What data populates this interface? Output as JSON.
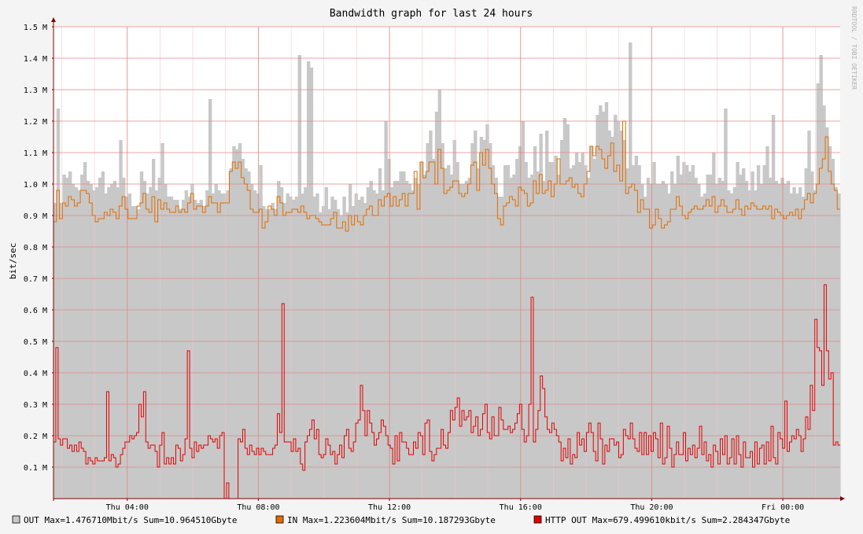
{
  "chart_data": {
    "type": "area",
    "title": "Bandwidth graph for last 24 hours",
    "ylabel": "bit/sec",
    "watermark": "RRDTOOL / TOBI OETIKER",
    "ylim": [
      0,
      1.5
    ],
    "y_unit": "M bit/sec",
    "yticks": [
      {
        "value": 0.1,
        "label": "0.1 M"
      },
      {
        "value": 0.2,
        "label": "0.2 M"
      },
      {
        "value": 0.3,
        "label": "0.3 M"
      },
      {
        "value": 0.4,
        "label": "0.4 M"
      },
      {
        "value": 0.5,
        "label": "0.5 M"
      },
      {
        "value": 0.6,
        "label": "0.6 M"
      },
      {
        "value": 0.7,
        "label": "0.7 M"
      },
      {
        "value": 0.8,
        "label": "0.8 M"
      },
      {
        "value": 0.9,
        "label": "0.9 M"
      },
      {
        "value": 1.0,
        "label": "1.0 M"
      },
      {
        "value": 1.1,
        "label": "1.1 M"
      },
      {
        "value": 1.2,
        "label": "1.2 M"
      },
      {
        "value": 1.3,
        "label": "1.3 M"
      },
      {
        "value": 1.4,
        "label": "1.4 M"
      },
      {
        "value": 1.5,
        "label": "1.5 M"
      }
    ],
    "x_hours_range": [
      0,
      24
    ],
    "xticks": [
      {
        "hour": 2.25,
        "label": "Thu 04:00"
      },
      {
        "hour": 6.25,
        "label": "Thu 08:00"
      },
      {
        "hour": 10.25,
        "label": "Thu 12:00"
      },
      {
        "hour": 14.25,
        "label": "Thu 16:00"
      },
      {
        "hour": 18.25,
        "label": "Thu 20:00"
      },
      {
        "hour": 22.25,
        "label": "Fri 00:00"
      }
    ],
    "grid": true,
    "colors": {
      "background": "#f4f4f4",
      "canvas": "#ffffff",
      "grid": "#eec8c8",
      "major_grid": "#e08888",
      "out": "#c8c8c8",
      "in": "#e06c00",
      "http_out": "#e00000",
      "axis": "#800000",
      "text": "#000000",
      "watermark": "#b0b0b0"
    },
    "series": [
      {
        "name": "OUT",
        "type": "area",
        "values": [
          0.94,
          1.24,
          0.94,
          1.03,
          1.02,
          1.04,
          1.0,
          0.99,
          0.98,
          1.03,
          1.07,
          1.01,
          1.0,
          0.98,
          0.99,
          1.02,
          1.04,
          0.97,
          0.99,
          1.0,
          1.01,
          0.99,
          1.14,
          1.02,
          0.96,
          0.97,
          0.93,
          0.93,
          0.92,
          1.04,
          1.01,
          0.97,
          0.99,
          1.08,
          0.98,
          1.02,
          1.13,
          1.0,
          0.96,
          0.96,
          0.95,
          0.95,
          0.92,
          0.95,
          0.98,
          0.96,
          1.0,
          0.95,
          0.94,
          0.95,
          0.93,
          0.98,
          1.27,
          0.97,
          1.0,
          0.98,
          0.97,
          0.97,
          0.98,
          1.05,
          1.12,
          1.11,
          1.13,
          1.08,
          1.05,
          1.04,
          1.0,
          0.98,
          0.97,
          1.06,
          0.93,
          0.92,
          0.92,
          0.94,
          0.92,
          1.01,
          0.99,
          0.94,
          0.97,
          0.96,
          0.95,
          0.96,
          1.41,
          0.97,
          0.99,
          1.39,
          1.37,
          0.96,
          0.97,
          0.91,
          0.93,
          0.99,
          0.92,
          0.96,
          0.95,
          0.92,
          0.9,
          0.96,
          0.91,
          1.0,
          0.93,
          0.97,
          0.95,
          0.96,
          0.94,
          0.99,
          1.01,
          0.98,
          0.97,
          1.05,
          0.98,
          1.2,
          1.08,
          0.99,
          1.01,
          1.01,
          1.04,
          1.04,
          1.01,
          1.0,
          0.98,
          1.02,
          1.0,
          1.07,
          1.03,
          1.13,
          1.17,
          1.08,
          1.23,
          1.3,
          1.13,
          1.05,
          1.06,
          1.03,
          1.14,
          1.07,
          1.0,
          1.0,
          1.01,
          1.02,
          1.13,
          1.17,
          1.05,
          1.15,
          1.14,
          1.19,
          1.13,
          1.06,
          1.02,
          0.96,
          0.96,
          1.06,
          1.06,
          1.02,
          1.03,
          1.08,
          1.12,
          1.2,
          1.07,
          1.02,
          1.03,
          1.12,
          1.04,
          1.16,
          1.01,
          1.17,
          1.07,
          1.07,
          1.09,
          1.03,
          1.14,
          1.21,
          1.19,
          1.05,
          1.06,
          1.1,
          1.07,
          1.1,
          1.06,
          1.02,
          1.12,
          1.08,
          1.22,
          1.25,
          1.23,
          1.26,
          1.17,
          1.15,
          1.22,
          1.2,
          1.17,
          1.14,
          1.05,
          1.45,
          1.06,
          1.09,
          1.06,
          1.0,
          0.96,
          1.02,
          1.0,
          1.07,
          1.0,
          1.0,
          1.01,
          1.0,
          0.97,
          1.04,
          1.0,
          1.09,
          1.03,
          1.07,
          1.06,
          1.04,
          1.06,
          1.02,
          1.0,
          0.96,
          0.97,
          1.03,
          1.03,
          1.1,
          1.0,
          1.02,
          1.01,
          1.24,
          0.98,
          0.97,
          0.99,
          1.07,
          1.03,
          1.05,
          1.01,
          0.98,
          1.04,
          0.98,
          1.06,
          1.0,
          1.06,
          1.12,
          1.02,
          1.22,
          1.01,
          1.0,
          1.02,
          1.0,
          1.01,
          0.97,
          0.99,
          0.97,
          0.99,
          0.96,
          1.05,
          1.17,
          1.04,
          0.98,
          1.32,
          1.41,
          1.25,
          1.18,
          1.12,
          1.08,
          0.99,
          0.97
        ]
      },
      {
        "name": "IN",
        "type": "line",
        "values": [
          0.88,
          0.98,
          0.89,
          0.94,
          0.93,
          0.96,
          0.95,
          0.93,
          0.94,
          0.98,
          0.98,
          0.97,
          0.94,
          0.9,
          0.88,
          0.89,
          0.89,
          0.91,
          0.9,
          0.92,
          0.91,
          0.89,
          0.93,
          0.96,
          0.92,
          0.89,
          0.89,
          0.89,
          0.93,
          0.94,
          0.97,
          0.92,
          0.91,
          0.96,
          0.88,
          0.95,
          0.92,
          0.94,
          0.92,
          0.91,
          0.91,
          0.93,
          0.91,
          0.92,
          0.91,
          0.94,
          0.97,
          0.92,
          0.93,
          0.93,
          0.91,
          0.93,
          0.96,
          0.94,
          0.94,
          0.91,
          0.94,
          0.94,
          0.94,
          1.04,
          1.07,
          1.05,
          1.07,
          1.02,
          1.0,
          0.98,
          0.92,
          0.91,
          0.91,
          0.92,
          0.86,
          0.88,
          0.93,
          0.92,
          0.9,
          0.96,
          0.94,
          0.9,
          0.91,
          0.91,
          0.92,
          0.92,
          0.91,
          0.93,
          0.91,
          0.89,
          0.9,
          0.9,
          0.89,
          0.88,
          0.87,
          0.87,
          0.87,
          0.89,
          0.91,
          0.86,
          0.86,
          0.88,
          0.85,
          0.9,
          0.87,
          0.9,
          0.88,
          0.87,
          0.9,
          0.92,
          0.93,
          0.9,
          0.9,
          0.95,
          0.93,
          0.96,
          0.97,
          0.93,
          0.96,
          0.93,
          0.95,
          0.97,
          0.93,
          0.97,
          0.97,
          1.04,
          0.92,
          1.07,
          1.02,
          1.04,
          1.07,
          1.07,
          1.0,
          1.11,
          1.05,
          0.97,
          0.98,
          0.99,
          1.01,
          1.01,
          0.97,
          0.96,
          0.97,
          1.0,
          1.06,
          1.07,
          0.98,
          1.1,
          1.06,
          1.11,
          1.05,
          1.0,
          0.97,
          0.89,
          0.87,
          0.93,
          0.94,
          0.96,
          0.95,
          0.93,
          0.99,
          0.98,
          0.97,
          0.93,
          0.94,
          1.01,
          0.97,
          1.03,
          0.97,
          0.98,
          1.01,
          0.96,
          1.0,
          1.08,
          1.0,
          1.0,
          1.01,
          1.02,
          0.99,
          1.0,
          0.97,
          0.96,
          1.0,
          1.04,
          1.12,
          1.09,
          1.12,
          1.11,
          1.08,
          1.05,
          1.09,
          1.13,
          1.04,
          1.06,
          1.01,
          1.2,
          0.97,
          0.99,
          1.0,
          0.98,
          0.91,
          0.95,
          0.92,
          0.92,
          0.86,
          0.87,
          0.92,
          0.89,
          0.86,
          0.87,
          0.88,
          0.92,
          0.92,
          0.96,
          0.93,
          0.9,
          0.89,
          0.91,
          0.92,
          0.93,
          0.92,
          0.92,
          0.93,
          0.95,
          0.93,
          0.96,
          0.91,
          0.93,
          0.95,
          0.93,
          0.91,
          0.91,
          0.92,
          0.95,
          0.92,
          0.9,
          0.93,
          0.92,
          0.94,
          0.93,
          0.92,
          0.92,
          0.93,
          0.92,
          0.93,
          0.89,
          0.92,
          0.91,
          0.9,
          0.89,
          0.9,
          0.91,
          0.9,
          0.92,
          0.89,
          0.92,
          0.95,
          0.97,
          0.94,
          0.97,
          1.0,
          1.05,
          1.08,
          1.15,
          1.04,
          1.0,
          0.98,
          0.92
        ]
      },
      {
        "name": "HTTP OUT",
        "type": "line",
        "values": [
          0.18,
          0.48,
          0.19,
          0.17,
          0.19,
          0.19,
          0.16,
          0.17,
          0.15,
          0.17,
          0.15,
          0.18,
          0.16,
          0.15,
          0.11,
          0.13,
          0.12,
          0.11,
          0.13,
          0.12,
          0.12,
          0.12,
          0.13,
          0.34,
          0.12,
          0.14,
          0.13,
          0.1,
          0.11,
          0.14,
          0.16,
          0.18,
          0.18,
          0.2,
          0.19,
          0.2,
          0.21,
          0.3,
          0.26,
          0.34,
          0.18,
          0.16,
          0.17,
          0.17,
          0.15,
          0.1,
          0.17,
          0.21,
          0.11,
          0.13,
          0.11,
          0.13,
          0.11,
          0.17,
          0.16,
          0.12,
          0.14,
          0.19,
          0.47,
          0.16,
          0.13,
          0.18,
          0.15,
          0.17,
          0.16,
          0.17,
          0.17,
          0.2,
          0.19,
          0.18,
          0.19,
          0.16,
          0.2,
          0.21,
          0.0,
          0.05,
          0.0,
          0.0,
          0.0,
          0.0,
          0.19,
          0.18,
          0.22,
          0.16,
          0.14,
          0.17,
          0.15,
          0.14,
          0.16,
          0.14,
          0.16,
          0.15,
          0.14,
          0.14,
          0.14,
          0.16,
          0.17,
          0.27,
          0.21,
          0.62,
          0.18,
          0.18,
          0.18,
          0.15,
          0.19,
          0.15,
          0.16,
          0.11,
          0.09,
          0.18,
          0.2,
          0.22,
          0.25,
          0.19,
          0.22,
          0.14,
          0.13,
          0.14,
          0.19,
          0.17,
          0.14,
          0.15,
          0.11,
          0.14,
          0.17,
          0.13,
          0.2,
          0.22,
          0.16,
          0.15,
          0.18,
          0.24,
          0.25,
          0.36,
          0.28,
          0.2,
          0.28,
          0.24,
          0.21,
          0.17,
          0.19,
          0.21,
          0.25,
          0.23,
          0.2,
          0.17,
          0.16,
          0.11,
          0.2,
          0.12,
          0.21,
          0.18,
          0.18,
          0.16,
          0.14,
          0.14,
          0.18,
          0.16,
          0.21,
          0.2,
          0.14,
          0.24,
          0.25,
          0.15,
          0.12,
          0.14,
          0.16,
          0.16,
          0.22,
          0.17,
          0.16,
          0.21,
          0.28,
          0.25,
          0.29,
          0.32,
          0.23,
          0.28,
          0.25,
          0.26,
          0.28,
          0.21,
          0.23,
          0.26,
          0.2,
          0.22,
          0.27,
          0.3,
          0.21,
          0.19,
          0.26,
          0.2,
          0.2,
          0.29,
          0.25,
          0.22,
          0.22,
          0.23,
          0.21,
          0.22,
          0.24,
          0.27,
          0.3,
          0.22,
          0.18,
          0.2,
          0.3,
          0.64,
          0.18,
          0.22,
          0.28,
          0.39,
          0.35,
          0.26,
          0.22,
          0.21,
          0.24,
          0.22,
          0.2,
          0.18,
          0.12,
          0.16,
          0.13,
          0.19,
          0.11,
          0.14,
          0.13,
          0.21,
          0.17,
          0.19,
          0.15,
          0.21,
          0.24,
          0.21,
          0.15,
          0.12,
          0.24,
          0.19,
          0.11,
          0.17,
          0.15,
          0.19,
          0.19,
          0.17,
          0.18,
          0.13,
          0.14,
          0.22,
          0.2,
          0.19,
          0.24,
          0.19,
          0.16,
          0.15,
          0.21,
          0.14,
          0.21,
          0.14,
          0.2,
          0.15,
          0.21,
          0.19,
          0.13,
          0.24,
          0.11,
          0.13,
          0.23,
          0.16,
          0.1,
          0.14,
          0.18,
          0.14,
          0.14,
          0.21,
          0.12,
          0.16,
          0.14,
          0.17,
          0.13,
          0.16,
          0.23,
          0.14,
          0.18,
          0.12,
          0.14,
          0.1,
          0.17,
          0.15,
          0.11,
          0.19,
          0.14,
          0.2,
          0.11,
          0.13,
          0.19,
          0.11,
          0.2,
          0.14,
          0.1,
          0.18,
          0.13,
          0.13,
          0.15,
          0.1,
          0.18,
          0.11,
          0.16,
          0.17,
          0.11,
          0.18,
          0.12,
          0.23,
          0.13,
          0.11,
          0.21,
          0.19,
          0.16,
          0.31,
          0.15,
          0.18,
          0.2,
          0.19,
          0.22,
          0.2,
          0.15,
          0.19,
          0.26,
          0.22,
          0.36,
          0.28,
          0.57,
          0.48,
          0.47,
          0.36,
          0.68,
          0.47,
          0.38,
          0.4,
          0.17,
          0.18,
          0.17
        ]
      }
    ]
  },
  "legend": [
    {
      "name": "OUT",
      "max_label": "Max=1.476710Mbit/s",
      "sum_label": "Sum=10.964510Gbyte",
      "color": "#c8c8c8"
    },
    {
      "name": "IN",
      "max_label": "Max=1.223604Mbit/s",
      "sum_label": "Sum=10.187293Gbyte",
      "color": "#e06c00"
    },
    {
      "name": "HTTP OUT",
      "max_label": "Max=679.499610kbit/s",
      "sum_label": "Sum=2.284347Gbyte",
      "color": "#e00000"
    }
  ]
}
